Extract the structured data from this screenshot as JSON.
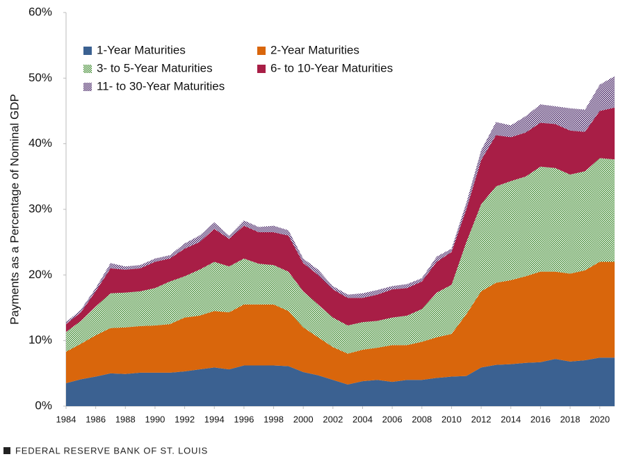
{
  "chart_data": {
    "type": "stacked_area",
    "y_label": "Payments as a Percentage of  Nominal GDP",
    "source": "FEDERAL RESERVE BANK OF ST. LOUIS",
    "x": [
      1984,
      1985,
      1986,
      1987,
      1988,
      1989,
      1990,
      1991,
      1992,
      1993,
      1994,
      1995,
      1996,
      1997,
      1998,
      1999,
      2000,
      2001,
      2002,
      2003,
      2004,
      2005,
      2006,
      2007,
      2008,
      2009,
      2010,
      2011,
      2012,
      2013,
      2014,
      2015,
      2016,
      2017,
      2018,
      2019,
      2020,
      2021
    ],
    "xlim": [
      1984,
      2021
    ],
    "xticks": [
      1984,
      1986,
      1988,
      1990,
      1992,
      1994,
      1996,
      1998,
      2000,
      2002,
      2004,
      2006,
      2008,
      2010,
      2012,
      2014,
      2016,
      2018,
      2020
    ],
    "ylim": [
      0,
      60
    ],
    "yticks": [
      {
        "value": 0,
        "label": "0%"
      },
      {
        "value": 10,
        "label": "10%"
      },
      {
        "value": 20,
        "label": "20%"
      },
      {
        "value": 30,
        "label": "30%"
      },
      {
        "value": 40,
        "label": "40%"
      },
      {
        "value": 50,
        "label": "50%"
      },
      {
        "value": 60,
        "label": "60%"
      }
    ],
    "legend": "upper left",
    "series": [
      {
        "name": "1-Year Maturities",
        "color": "#3b6191",
        "pattern": "solid",
        "values": [
          3.5,
          4.1,
          4.5,
          5.0,
          4.9,
          5.1,
          5.1,
          5.1,
          5.3,
          5.6,
          5.9,
          5.6,
          6.2,
          6.2,
          6.2,
          6.1,
          5.2,
          4.7,
          4.0,
          3.3,
          3.8,
          4.0,
          3.7,
          4.0,
          4.0,
          4.3,
          4.5,
          4.6,
          5.9,
          6.3,
          6.4,
          6.6,
          6.7,
          7.2,
          6.8,
          7.0,
          7.4,
          7.4
        ]
      },
      {
        "name": "2-Year Maturities",
        "color": "#d9660c",
        "pattern": "solid",
        "values": [
          4.8,
          5.4,
          6.3,
          6.9,
          7.1,
          7.1,
          7.2,
          7.4,
          8.2,
          8.2,
          8.6,
          8.7,
          9.3,
          9.3,
          9.3,
          8.4,
          6.8,
          5.8,
          5.0,
          4.7,
          4.8,
          4.9,
          5.6,
          5.3,
          5.8,
          6.2,
          6.5,
          9.4,
          11.6,
          12.5,
          12.8,
          13.2,
          13.8,
          13.3,
          13.4,
          13.7,
          14.6,
          14.6
        ]
      },
      {
        "name": "3- to 5-Year Maturities",
        "color": "#3d8a2e",
        "pattern": "dots",
        "values": [
          3.0,
          3.5,
          4.4,
          5.3,
          5.3,
          5.3,
          5.7,
          6.5,
          6.3,
          7.0,
          7.5,
          7.0,
          7.0,
          6.2,
          6.0,
          6.0,
          5.5,
          5.0,
          4.5,
          4.3,
          4.2,
          4.1,
          4.2,
          4.5,
          5.0,
          6.8,
          7.5,
          11.0,
          13.3,
          14.7,
          15.1,
          15.2,
          16.0,
          15.8,
          15.1,
          15.1,
          15.8,
          15.6
        ]
      },
      {
        "name": "6- to 10-Year Maturities",
        "color": "#a81e46",
        "pattern": "solid",
        "values": [
          1.2,
          1.3,
          2.3,
          3.8,
          3.5,
          3.5,
          4.0,
          3.5,
          4.2,
          4.2,
          5.0,
          4.2,
          5.0,
          4.8,
          5.0,
          5.5,
          4.3,
          4.5,
          4.3,
          4.2,
          3.7,
          4.0,
          4.3,
          4.2,
          4.2,
          4.7,
          5.0,
          5.0,
          6.7,
          7.8,
          6.7,
          6.7,
          6.7,
          6.7,
          6.7,
          6.0,
          7.2,
          7.9
        ]
      },
      {
        "name": "11- to 30-Year Maturities",
        "color": "#3e1a5e",
        "pattern": "checker",
        "values": [
          0.3,
          0.4,
          0.5,
          0.8,
          0.5,
          0.5,
          0.5,
          0.5,
          0.8,
          1.0,
          1.0,
          0.5,
          0.8,
          0.8,
          1.0,
          0.8,
          0.7,
          0.8,
          0.5,
          0.5,
          0.7,
          0.7,
          0.5,
          0.6,
          0.5,
          0.8,
          0.5,
          1.0,
          1.5,
          2.0,
          1.8,
          2.5,
          2.8,
          2.7,
          3.4,
          3.4,
          4.0,
          4.8
        ]
      }
    ]
  }
}
